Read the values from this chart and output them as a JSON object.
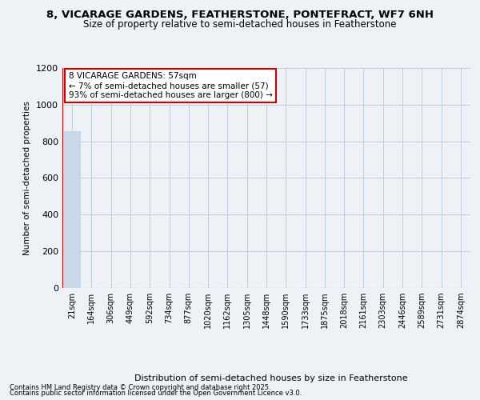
{
  "title1": "8, VICARAGE GARDENS, FEATHERSTONE, PONTEFRACT, WF7 6NH",
  "title2": "Size of property relative to semi-detached houses in Featherstone",
  "xlabel": "Distribution of semi-detached houses by size in Featherstone",
  "ylabel": "Number of semi-detached properties",
  "annotation_title": "8 VICARAGE GARDENS: 57sqm",
  "annotation_line2": "← 7% of semi-detached houses are smaller (57)",
  "annotation_line3": "93% of semi-detached houses are larger (800) →",
  "footer1": "Contains HM Land Registry data © Crown copyright and database right 2025.",
  "footer2": "Contains public sector information licensed under the Open Government Licence v3.0.",
  "categories": [
    "21sqm",
    "164sqm",
    "306sqm",
    "449sqm",
    "592sqm",
    "734sqm",
    "877sqm",
    "1020sqm",
    "1162sqm",
    "1305sqm",
    "1448sqm",
    "1590sqm",
    "1733sqm",
    "1875sqm",
    "2018sqm",
    "2161sqm",
    "2303sqm",
    "2446sqm",
    "2589sqm",
    "2731sqm",
    "2874sqm"
  ],
  "values": [
    857,
    0,
    0,
    0,
    0,
    0,
    0,
    0,
    0,
    0,
    0,
    0,
    0,
    0,
    0,
    0,
    0,
    0,
    0,
    0,
    0
  ],
  "bar_color": "#c8d8e8",
  "highlight_line_color": "#cc0000",
  "ylim": [
    0,
    1200
  ],
  "yticks": [
    0,
    200,
    400,
    600,
    800,
    1000,
    1200
  ],
  "background_color": "#eef2f7",
  "plot_bg_color": "#eef2f7",
  "grid_color": "#b0c0d0",
  "title1_fontsize": 9.5,
  "title2_fontsize": 8.5,
  "ylabel_fontsize": 7.5,
  "xlabel_fontsize": 8.0,
  "tick_fontsize": 7.0,
  "ytick_fontsize": 8.0,
  "footer_fontsize": 6.0,
  "ann_fontsize": 7.5
}
